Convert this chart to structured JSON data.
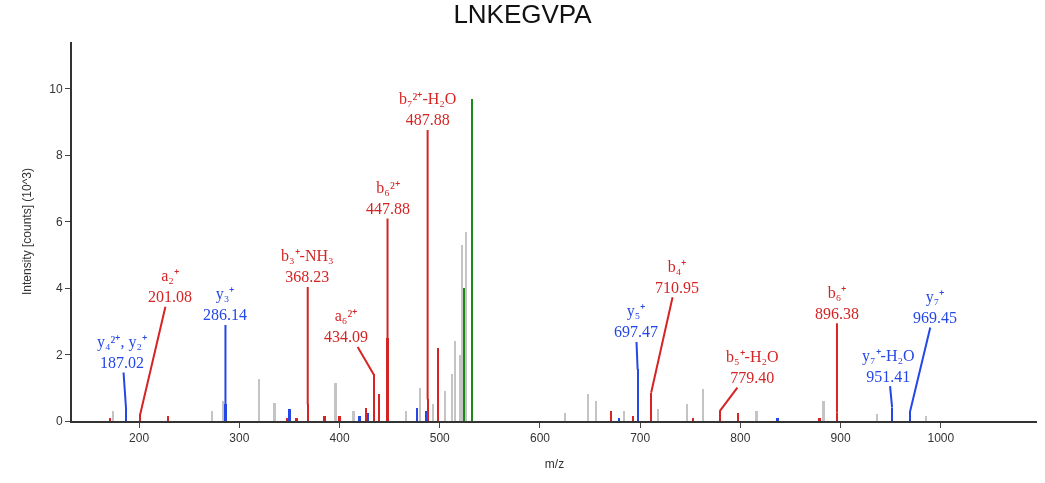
{
  "chart_data": {
    "type": "bar",
    "title": "LNKEGVPA",
    "xlabel": "m/z",
    "ylabel": "Intensity [counts] (10^3)",
    "xlim": [
      133,
      1096
    ],
    "xticks": [
      200,
      300,
      400,
      500,
      600,
      700,
      800,
      900,
      1000
    ],
    "ylim": [
      0,
      11.4
    ],
    "yticks": [
      0,
      2,
      4,
      6,
      8,
      10
    ],
    "series": [
      {
        "color": "#c4c4c4",
        "x": [
          174,
          273,
          284,
          320,
          335,
          396,
          414,
          466,
          480,
          493,
          505,
          512,
          515,
          520,
          522.5,
          526.5,
          625,
          648,
          656,
          684,
          718,
          747,
          763,
          816,
          883,
          936,
          985
        ],
        "values": [
          0.3,
          0.3,
          0.6,
          1.26,
          0.55,
          1.15,
          0.3,
          0.3,
          1.0,
          0.5,
          0.9,
          1.4,
          2.4,
          2.0,
          5.3,
          5.7,
          0.25,
          0.8,
          0.6,
          0.3,
          0.35,
          0.5,
          0.95,
          0.3,
          0.6,
          0.2,
          0.15
        ]
      },
      {
        "color": "#d62424",
        "x": [
          171,
          201.08,
          229,
          348,
          357,
          368.23,
          385,
          400,
          426,
          434.09,
          439,
          447.88,
          487.88,
          498,
          671,
          693,
          710.95,
          753,
          779.4,
          798,
          879,
          896.38
        ],
        "values": [
          0.1,
          0.2,
          0.15,
          0.1,
          0.1,
          0.5,
          0.15,
          0.15,
          0.4,
          1.4,
          0.8,
          2.5,
          0.65,
          2.2,
          0.3,
          0.15,
          0.85,
          0.1,
          0.3,
          0.25,
          0.1,
          0.25
        ]
      },
      {
        "color": "#2447e6",
        "x": [
          187.02,
          286.14,
          350,
          420,
          428,
          477,
          486,
          679,
          697.47,
          837,
          951.41,
          969.45
        ],
        "values": [
          0.33,
          0.5,
          0.35,
          0.15,
          0.25,
          0.4,
          0.3,
          0.1,
          1.55,
          0.1,
          0.4,
          0.3
        ]
      },
      {
        "color": "#1a8a1a",
        "x": [
          524,
          532
        ],
        "values": [
          4.0,
          9.7
        ]
      }
    ],
    "annotations": [
      {
        "text": "y₄²⁺, y₂⁺\n187.02",
        "x": 187.02,
        "y": 0.33
      },
      {
        "text": "a₂⁺\n201.08",
        "x": 201.08,
        "y": 0.2
      },
      {
        "text": "y₃⁺\n286.14",
        "x": 286.14,
        "y": 0.5
      },
      {
        "text": "b₃⁺-NH₃\n368.23",
        "x": 368.23,
        "y": 0.5
      },
      {
        "text": "a₆²⁺\n434.09",
        "x": 434.09,
        "y": 1.4
      },
      {
        "text": "b₆²⁺\n447.88",
        "x": 447.88,
        "y": 2.5
      },
      {
        "text": "b₇²⁺-H₂O\n487.88",
        "x": 487.88,
        "y": 0.65
      },
      {
        "text": "y₅⁺\n697.47",
        "x": 697.47,
        "y": 1.55
      },
      {
        "text": "b₄⁺\n710.95",
        "x": 710.95,
        "y": 0.85
      },
      {
        "text": "b₅⁺-H₂O\n779.40",
        "x": 779.4,
        "y": 0.3
      },
      {
        "text": "b₆⁺\n896.38",
        "x": 896.38,
        "y": 0.25
      },
      {
        "text": "y₇⁺-H₂O\n951.41",
        "x": 951.41,
        "y": 0.4
      },
      {
        "text": "y₇⁺\n969.45",
        "x": 969.45,
        "y": 0.3
      }
    ]
  }
}
